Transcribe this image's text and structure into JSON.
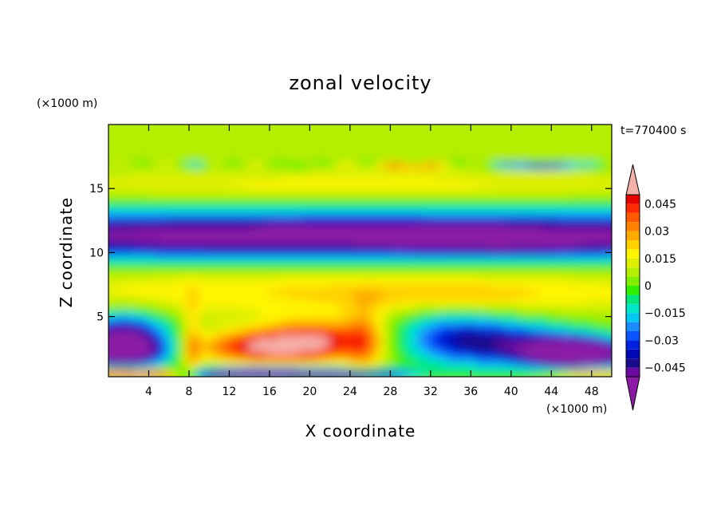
{
  "chart_data": {
    "type": "heatmap",
    "title": "zonal velocity",
    "xlabel": "X coordinate",
    "ylabel": "Z coordinate",
    "x_unit": "(×1000 m)",
    "y_unit": "(×1000 m)",
    "time_label": "t=770400 s",
    "xlim": [
      0,
      50
    ],
    "ylim": [
      0.3,
      20
    ],
    "x_ticks": [
      4,
      8,
      12,
      16,
      20,
      24,
      28,
      32,
      36,
      40,
      44,
      48
    ],
    "x_tick_labels": [
      "4",
      "8",
      "12",
      "16",
      "20",
      "24",
      "28",
      "32",
      "36",
      "40",
      "44",
      "48"
    ],
    "y_ticks": [
      5,
      10,
      15
    ],
    "y_tick_labels": [
      "5",
      "10",
      "15"
    ],
    "colorbar": {
      "levels": [
        -0.05,
        -0.045,
        -0.04,
        -0.035,
        -0.03,
        -0.025,
        -0.02,
        -0.015,
        -0.01,
        -0.005,
        0,
        0.005,
        0.01,
        0.015,
        0.02,
        0.025,
        0.03,
        0.035,
        0.04,
        0.045,
        0.05
      ],
      "tick_values": [
        0.045,
        0.03,
        0.015,
        0,
        -0.015,
        -0.03,
        -0.045
      ],
      "tick_labels": [
        "0.045",
        "0.03",
        "0.015",
        "0",
        "−0.015",
        "−0.03",
        "−0.045"
      ],
      "extend": "both",
      "under_color": "#8c1aa6",
      "over_color": "#f5b0a8",
      "colors": [
        "#6a0aa0",
        "#1a0a8c",
        "#0008b4",
        "#0022e0",
        "#0a55ff",
        "#1a8cff",
        "#00c8f0",
        "#00e6c8",
        "#00e678",
        "#2ef000",
        "#80f000",
        "#b4ee00",
        "#dcf000",
        "#fff500",
        "#ffd200",
        "#ffaa00",
        "#ff8200",
        "#ff5a00",
        "#ff2a00",
        "#e60000"
      ]
    }
  }
}
